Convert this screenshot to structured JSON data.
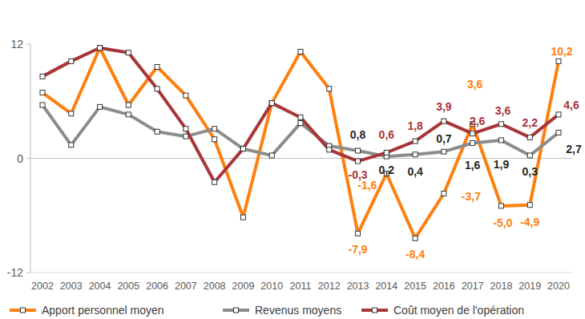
{
  "chart_data": {
    "type": "line",
    "categories": [
      "2002",
      "2003",
      "2004",
      "2005",
      "2006",
      "2007",
      "2008",
      "2009",
      "2010",
      "2011",
      "2012",
      "2013",
      "2014",
      "2015",
      "2016",
      "2017",
      "2018",
      "2019",
      "2020"
    ],
    "series": [
      {
        "name": "Apport personnel moyen",
        "color": "#ff7f0e",
        "marker": "square",
        "values": [
          6.9,
          4.7,
          11.6,
          5.6,
          9.6,
          6.6,
          2.0,
          -6.2,
          5.8,
          11.2,
          7.3,
          -7.9,
          -1.6,
          -8.4,
          -3.7,
          3.6,
          -5.0,
          -4.9,
          10.2
        ],
        "value_labels": [
          null,
          null,
          null,
          null,
          null,
          null,
          null,
          null,
          null,
          null,
          null,
          "-7,9",
          "-1,6",
          "-8,4",
          "-3,7",
          "3,6",
          "-5,0",
          "-4,9",
          "10,2"
        ]
      },
      {
        "name": "Revenus moyens",
        "color": "#8c8c8c",
        "marker": "square",
        "values": [
          5.6,
          1.4,
          5.4,
          4.6,
          2.8,
          2.3,
          3.1,
          1.0,
          0.3,
          3.7,
          1.3,
          0.8,
          0.2,
          0.4,
          0.7,
          1.6,
          1.9,
          0.3,
          2.7
        ],
        "value_labels": [
          null,
          null,
          null,
          null,
          null,
          null,
          null,
          null,
          null,
          null,
          null,
          "0,8",
          "0,2",
          "0,4",
          "0,7",
          "1,6",
          "1,9",
          "0,3",
          "2,7"
        ]
      },
      {
        "name": "Coût moyen de l'opération",
        "color": "#a8353a",
        "marker": "square",
        "values": [
          8.6,
          10.2,
          11.6,
          11.1,
          7.3,
          3.1,
          -2.5,
          1.0,
          5.8,
          4.3,
          0.9,
          -0.3,
          0.6,
          1.8,
          3.9,
          2.6,
          3.6,
          2.2,
          4.6
        ],
        "value_labels": [
          null,
          null,
          null,
          null,
          null,
          null,
          null,
          null,
          null,
          null,
          null,
          "-0,3",
          "0,6",
          "1,8",
          "3,9",
          "2,6",
          "3,6",
          "2,2",
          "4,6"
        ]
      }
    ],
    "ylim": [
      -12,
      12
    ],
    "yticks": [
      -12,
      0,
      12
    ],
    "grid": false,
    "legend": "bottom",
    "data_labels": true
  }
}
